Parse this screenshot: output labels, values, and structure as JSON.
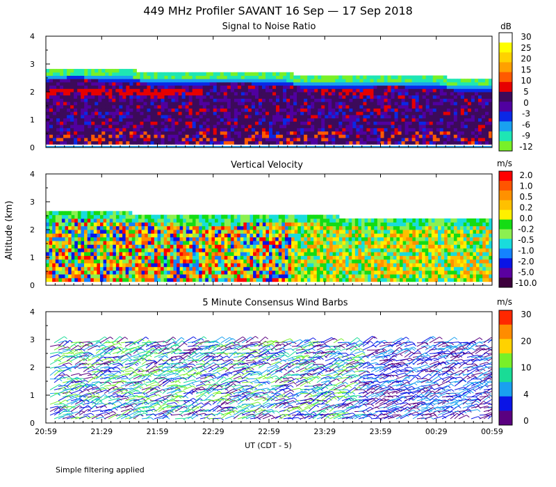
{
  "title": "449 MHz Profiler SAVANT 16 Sep — 17 Sep 2018",
  "y_axis_label": "Altitude (km)",
  "x_axis_label": "UT  (CDT - 5)",
  "footnote": "Simple filtering applied",
  "x_tick_labels": [
    "20:59",
    "21:29",
    "21:59",
    "22:29",
    "22:59",
    "23:29",
    "23:59",
    "00:29",
    "00:59"
  ],
  "chart_data": [
    {
      "type": "heatmap",
      "title": "Signal to Noise Ratio",
      "unit": "dB",
      "ylim": [
        0,
        4
      ],
      "y_ticks": [
        "0",
        "1",
        "2",
        "3",
        "4"
      ],
      "colorbar": {
        "labels": [
          "30",
          "25",
          "20",
          "15",
          "10",
          "5",
          "0",
          "-3",
          "-6",
          "-9",
          "-12"
        ],
        "colors": [
          "#ffffff",
          "#ffff00",
          "#ffd200",
          "#ffa000",
          "#ff5a00",
          "#e60000",
          "#3c0a5a",
          "#5000a0",
          "#0a28e6",
          "#19a0f0",
          "#1ee6b4",
          "#78f028"
        ]
      }
    },
    {
      "type": "heatmap",
      "title": "Vertical Velocity",
      "unit": "m/s",
      "ylim": [
        0,
        4
      ],
      "y_ticks": [
        "0",
        "1",
        "2",
        "3",
        "4"
      ],
      "colorbar": {
        "labels": [
          "2.0",
          "1.0",
          "0.5",
          "0.2",
          "0.0",
          "-0.2",
          "-0.5",
          "-1.0",
          "-2.0",
          "-5.0",
          "-10.0"
        ],
        "colors": [
          "#ff0000",
          "#ff5500",
          "#ff9100",
          "#ffc000",
          "#fff000",
          "#14dc14",
          "#8cf050",
          "#19dcdc",
          "#1482ff",
          "#0a14e6",
          "#5a00a0",
          "#3c003c"
        ]
      }
    },
    {
      "type": "scatter",
      "title": "5 Minute Consensus Wind Barbs",
      "unit": "m/s",
      "ylim": [
        0,
        4
      ],
      "y_ticks": [
        "0",
        "1",
        "2",
        "3",
        "4"
      ],
      "colorbar": {
        "labels": [
          "30",
          "20",
          "10",
          "4",
          "0"
        ],
        "colors": [
          "#ff2800",
          "#ff8c00",
          "#ffd200",
          "#78f028",
          "#19dc96",
          "#19a0f0",
          "#0a14e6",
          "#5a0080"
        ]
      }
    }
  ]
}
